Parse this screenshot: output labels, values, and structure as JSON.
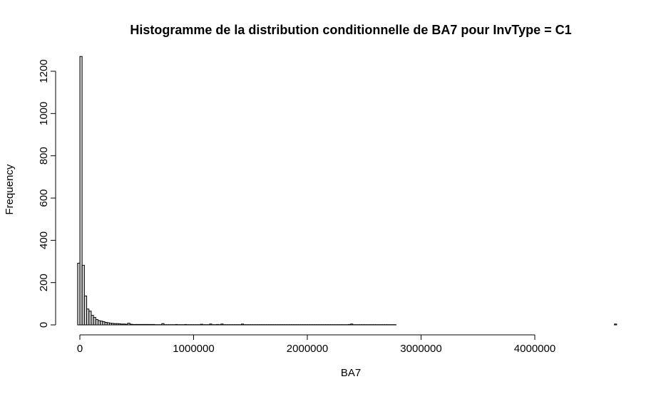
{
  "chart_data": {
    "type": "bar",
    "subtype": "histogram",
    "title": "Histogramme de la distribution conditionnelle de BA7 pour InvType = C1",
    "xlabel": "BA7",
    "ylabel": "Frequency",
    "xlim": [
      0,
      4720000
    ],
    "ylim": [
      0,
      1270
    ],
    "xticks": [
      0,
      1000000,
      2000000,
      3000000,
      4000000
    ],
    "yticks": [
      0,
      200,
      400,
      600,
      800,
      1000,
      1200
    ],
    "bin_width": 20000,
    "bins_start": -20000,
    "values": [
      292,
      1270,
      282,
      137,
      75,
      65,
      45,
      35,
      25,
      20,
      18,
      15,
      12,
      10,
      8,
      7,
      6,
      6,
      5,
      4,
      4,
      3,
      8,
      3,
      2,
      2,
      2,
      2,
      2,
      2,
      2,
      2,
      2,
      2,
      1,
      1,
      1,
      6,
      1,
      1,
      1,
      1,
      1,
      2,
      1,
      1,
      1,
      2,
      1,
      1,
      1,
      1,
      1,
      1,
      3,
      1,
      1,
      1,
      4,
      1,
      1,
      2,
      1,
      4,
      1,
      1,
      1,
      1,
      1,
      1,
      1,
      1,
      4,
      1,
      1,
      1,
      1,
      1,
      1,
      1,
      1,
      1,
      1,
      1,
      1,
      1,
      1,
      1,
      1,
      1,
      1,
      1,
      1,
      1,
      1,
      1,
      1,
      1,
      1,
      1,
      1,
      1,
      1,
      1,
      1,
      1,
      1,
      1,
      1,
      1,
      1,
      1,
      1,
      1,
      1,
      1,
      1,
      1,
      1,
      1,
      4,
      1,
      1,
      1,
      1,
      1,
      1,
      1,
      1,
      1,
      1,
      1,
      1,
      1,
      1,
      1,
      1,
      1,
      1,
      1
    ],
    "sparse_bins": [
      {
        "start": 2360000,
        "value": 2
      },
      {
        "start": 4700000,
        "value": 4
      }
    ],
    "bar_fill": "#d3d3d3",
    "bar_stroke": "#000000",
    "grid": false
  }
}
